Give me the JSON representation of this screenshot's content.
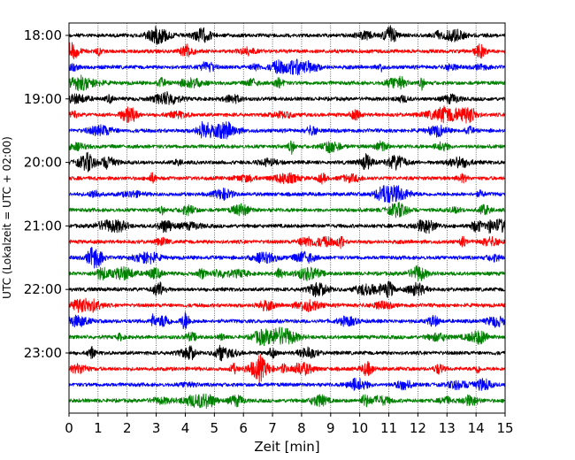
{
  "chart_data": {
    "type": "line",
    "title": "",
    "xlabel": "Zeit  [min]",
    "ylabel": "UTC (Lokalzeit = UTC + 02:00)",
    "xlim": [
      0,
      15
    ],
    "x_ticks": [
      0,
      1,
      2,
      3,
      4,
      5,
      6,
      7,
      8,
      9,
      10,
      11,
      12,
      13,
      14,
      15
    ],
    "x_tick_labels": [
      "0",
      "1",
      "2",
      "3",
      "4",
      "5",
      "6",
      "7",
      "8",
      "9",
      "10",
      "11",
      "12",
      "13",
      "14",
      "15"
    ],
    "y_tick_labels": [
      "18:00",
      "19:00",
      "20:00",
      "21:00",
      "22:00",
      "23:00"
    ],
    "grid": {
      "x": true,
      "y": false
    },
    "colors": [
      "#000000",
      "#ff0000",
      "#0000ff",
      "#008000"
    ],
    "series": [
      {
        "start": "18:00"
      },
      {
        "start": "18:15"
      },
      {
        "start": "18:30"
      },
      {
        "start": "18:45"
      },
      {
        "start": "19:00"
      },
      {
        "start": "19:15"
      },
      {
        "start": "19:30"
      },
      {
        "start": "19:45"
      },
      {
        "start": "20:00"
      },
      {
        "start": "20:15"
      },
      {
        "start": "20:30"
      },
      {
        "start": "20:45"
      },
      {
        "start": "21:00"
      },
      {
        "start": "21:15"
      },
      {
        "start": "21:30"
      },
      {
        "start": "21:45"
      },
      {
        "start": "22:00"
      },
      {
        "start": "22:15"
      },
      {
        "start": "22:30"
      },
      {
        "start": "22:45"
      },
      {
        "start": "23:00"
      },
      {
        "start": "23:15"
      },
      {
        "start": "23:30"
      },
      {
        "start": "23:45"
      }
    ]
  }
}
